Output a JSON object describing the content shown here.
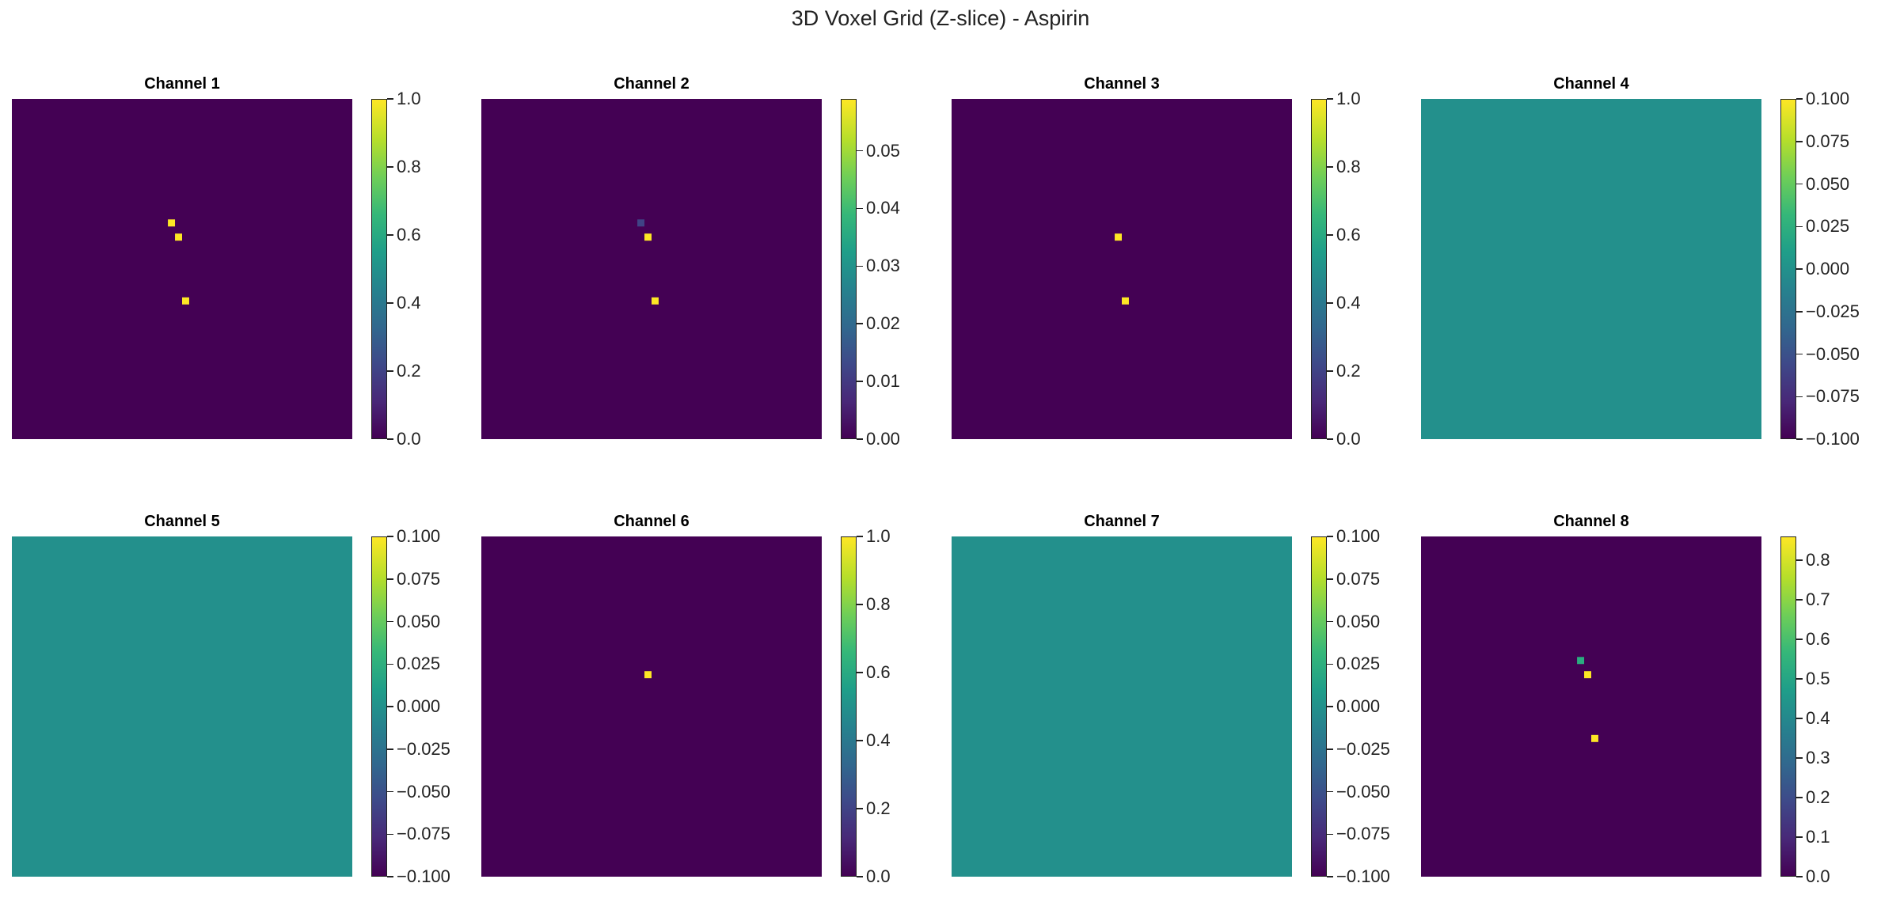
{
  "figure": {
    "suptitle": "3D Voxel Grid (Z-slice) - Aspirin"
  },
  "colors": {
    "viridis_min": "#440154",
    "viridis_mid": "#21918c",
    "viridis_max": "#fde725"
  },
  "chart_data": [
    {
      "type": "heatmap",
      "title": "Channel 1",
      "grid_size": 48,
      "background_value": 0.0,
      "cells": [
        {
          "col": 22,
          "row": 17,
          "value": 1.0
        },
        {
          "col": 23,
          "row": 19,
          "value": 1.0
        },
        {
          "col": 24,
          "row": 28,
          "value": 1.0
        }
      ],
      "colorbar": {
        "min": 0.0,
        "max": 1.0,
        "ticks": [
          0.0,
          0.2,
          0.4,
          0.6,
          0.8,
          1.0
        ],
        "tick_labels": [
          "0.0",
          "0.2",
          "0.4",
          "0.6",
          "0.8",
          "1.0"
        ]
      }
    },
    {
      "type": "heatmap",
      "title": "Channel 2",
      "grid_size": 48,
      "background_value": 0.0,
      "cells": [
        {
          "col": 22,
          "row": 17,
          "value": 0.012
        },
        {
          "col": 23,
          "row": 19,
          "value": 0.059
        },
        {
          "col": 24,
          "row": 28,
          "value": 0.059
        }
      ],
      "colorbar": {
        "min": 0.0,
        "max": 0.059,
        "ticks": [
          0.0,
          0.01,
          0.02,
          0.03,
          0.04,
          0.05
        ],
        "tick_labels": [
          "0.00",
          "0.01",
          "0.02",
          "0.03",
          "0.04",
          "0.05"
        ]
      }
    },
    {
      "type": "heatmap",
      "title": "Channel 3",
      "grid_size": 48,
      "background_value": 0.0,
      "cells": [
        {
          "col": 23,
          "row": 19,
          "value": 1.0
        },
        {
          "col": 24,
          "row": 28,
          "value": 1.0
        }
      ],
      "colorbar": {
        "min": 0.0,
        "max": 1.0,
        "ticks": [
          0.0,
          0.2,
          0.4,
          0.6,
          0.8,
          1.0
        ],
        "tick_labels": [
          "0.0",
          "0.2",
          "0.4",
          "0.6",
          "0.8",
          "1.0"
        ]
      }
    },
    {
      "type": "heatmap",
      "title": "Channel 4",
      "grid_size": 48,
      "background_value": 0.0,
      "cells": [],
      "colorbar": {
        "min": -0.1,
        "max": 0.1,
        "ticks": [
          -0.1,
          -0.075,
          -0.05,
          -0.025,
          0.0,
          0.025,
          0.05,
          0.075,
          0.1
        ],
        "tick_labels": [
          "−0.100",
          "−0.075",
          "−0.050",
          "−0.025",
          "0.000",
          "0.025",
          "0.050",
          "0.075",
          "0.100"
        ]
      }
    },
    {
      "type": "heatmap",
      "title": "Channel 5",
      "grid_size": 48,
      "background_value": 0.0,
      "cells": [],
      "colorbar": {
        "min": -0.1,
        "max": 0.1,
        "ticks": [
          -0.1,
          -0.075,
          -0.05,
          -0.025,
          0.0,
          0.025,
          0.05,
          0.075,
          0.1
        ],
        "tick_labels": [
          "−0.100",
          "−0.075",
          "−0.050",
          "−0.025",
          "0.000",
          "0.025",
          "0.050",
          "0.075",
          "0.100"
        ]
      }
    },
    {
      "type": "heatmap",
      "title": "Channel 6",
      "grid_size": 48,
      "background_value": 0.0,
      "cells": [
        {
          "col": 23,
          "row": 19,
          "value": 1.0
        }
      ],
      "colorbar": {
        "min": 0.0,
        "max": 1.0,
        "ticks": [
          0.0,
          0.2,
          0.4,
          0.6,
          0.8,
          1.0
        ],
        "tick_labels": [
          "0.0",
          "0.2",
          "0.4",
          "0.6",
          "0.8",
          "1.0"
        ]
      }
    },
    {
      "type": "heatmap",
      "title": "Channel 7",
      "grid_size": 48,
      "background_value": 0.0,
      "cells": [],
      "colorbar": {
        "min": -0.1,
        "max": 0.1,
        "ticks": [
          -0.1,
          -0.075,
          -0.05,
          -0.025,
          0.0,
          0.025,
          0.05,
          0.075,
          0.1
        ],
        "tick_labels": [
          "−0.100",
          "−0.075",
          "−0.050",
          "−0.025",
          "0.000",
          "0.025",
          "0.050",
          "0.075",
          "0.100"
        ]
      }
    },
    {
      "type": "heatmap",
      "title": "Channel 8",
      "grid_size": 48,
      "background_value": 0.0,
      "cells": [
        {
          "col": 22,
          "row": 17,
          "value": 0.53
        },
        {
          "col": 23,
          "row": 19,
          "value": 0.86
        },
        {
          "col": 24,
          "row": 28,
          "value": 0.86
        }
      ],
      "colorbar": {
        "min": 0.0,
        "max": 0.86,
        "ticks": [
          0.0,
          0.1,
          0.2,
          0.3,
          0.4,
          0.5,
          0.6,
          0.7,
          0.8
        ],
        "tick_labels": [
          "0.0",
          "0.1",
          "0.2",
          "0.3",
          "0.4",
          "0.5",
          "0.6",
          "0.7",
          "0.8"
        ]
      }
    }
  ]
}
